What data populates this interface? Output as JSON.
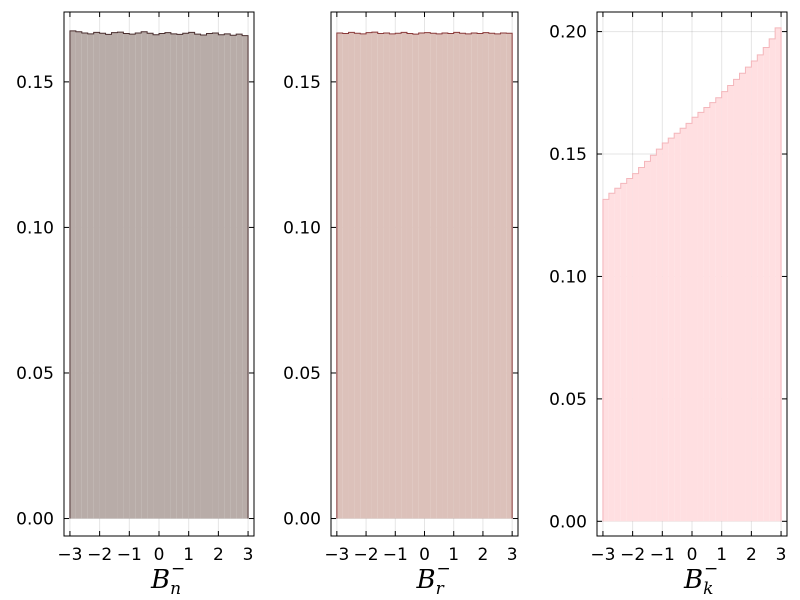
{
  "chart_data": [
    {
      "type": "bar",
      "xlabel_base": "B",
      "xlabel_sub": "n",
      "xlabel_sup": "−",
      "xlim": [
        -3.2,
        3.2
      ],
      "ylim": [
        -0.006,
        0.174
      ],
      "xticks": [
        -3,
        -2,
        -1,
        0,
        1,
        2,
        3
      ],
      "xtick_labels": [
        "−3",
        "−2",
        "−1",
        "0",
        "1",
        "2",
        "3"
      ],
      "yticks": [
        0,
        0.05,
        0.1,
        0.15
      ],
      "ytick_labels": [
        "0.00",
        "0.05",
        "0.10",
        "0.15"
      ],
      "grid": true,
      "fill_color": "#b8aca8",
      "stroke_color": "#4a2f2f",
      "bin_edges": [
        -3.0,
        -2.8,
        -2.6,
        -2.4,
        -2.2,
        -2.0,
        -1.8,
        -1.6,
        -1.4,
        -1.2,
        -1.0,
        -0.8,
        -0.6,
        -0.4,
        -0.2,
        0.0,
        0.2,
        0.4,
        0.6,
        0.8,
        1.0,
        1.2,
        1.4,
        1.6,
        1.8,
        2.0,
        2.2,
        2.4,
        2.6,
        2.8,
        3.0
      ],
      "values": [
        0.1675,
        0.1672,
        0.1668,
        0.1665,
        0.167,
        0.1667,
        0.1663,
        0.1669,
        0.1671,
        0.1666,
        0.1664,
        0.1668,
        0.1672,
        0.1667,
        0.1662,
        0.1666,
        0.1669,
        0.1665,
        0.1663,
        0.1667,
        0.167,
        0.1664,
        0.1661,
        0.1666,
        0.1668,
        0.1662,
        0.1665,
        0.166,
        0.1664,
        0.1659
      ]
    },
    {
      "type": "bar",
      "xlabel_base": "B",
      "xlabel_sub": "r",
      "xlabel_sup": "−",
      "xlim": [
        -3.2,
        3.2
      ],
      "ylim": [
        -0.006,
        0.174
      ],
      "xticks": [
        -3,
        -2,
        -1,
        0,
        1,
        2,
        3
      ],
      "xtick_labels": [
        "−3",
        "−2",
        "−1",
        "0",
        "1",
        "2",
        "3"
      ],
      "yticks": [
        0,
        0.05,
        0.1,
        0.15
      ],
      "ytick_labels": [
        "0.00",
        "0.05",
        "0.10",
        "0.15"
      ],
      "grid": true,
      "fill_color": "#dcc1ba",
      "stroke_color": "#8a3a3a",
      "bin_edges": [
        -3.0,
        -2.8,
        -2.6,
        -2.4,
        -2.2,
        -2.0,
        -1.8,
        -1.6,
        -1.4,
        -1.2,
        -1.0,
        -0.8,
        -0.6,
        -0.4,
        -0.2,
        0.0,
        0.2,
        0.4,
        0.6,
        0.8,
        1.0,
        1.2,
        1.4,
        1.6,
        1.8,
        2.0,
        2.2,
        2.4,
        2.6,
        2.8,
        3.0
      ],
      "values": [
        0.1668,
        0.1666,
        0.167,
        0.1667,
        0.1665,
        0.1669,
        0.1671,
        0.1666,
        0.1668,
        0.1665,
        0.1667,
        0.167,
        0.1666,
        0.1664,
        0.1668,
        0.1669,
        0.1667,
        0.1665,
        0.1668,
        0.1666,
        0.167,
        0.1667,
        0.1665,
        0.1668,
        0.1666,
        0.1669,
        0.1667,
        0.1665,
        0.1668,
        0.1667
      ]
    },
    {
      "type": "bar",
      "xlabel_base": "B",
      "xlabel_sub": "k",
      "xlabel_sup": "−",
      "xlim": [
        -3.2,
        3.2
      ],
      "ylim": [
        -0.006,
        0.208
      ],
      "xticks": [
        -3,
        -2,
        -1,
        0,
        1,
        2,
        3
      ],
      "xtick_labels": [
        "−3",
        "−2",
        "−1",
        "0",
        "1",
        "2",
        "3"
      ],
      "yticks": [
        0,
        0.05,
        0.1,
        0.15,
        0.2
      ],
      "ytick_labels": [
        "0.00",
        "0.05",
        "0.10",
        "0.15",
        "0.20"
      ],
      "grid": true,
      "fill_color": "#ffdfe1",
      "stroke_color": "#f4b6bb",
      "bin_edges": [
        -3.0,
        -2.8,
        -2.6,
        -2.4,
        -2.2,
        -2.0,
        -1.8,
        -1.6,
        -1.4,
        -1.2,
        -1.0,
        -0.8,
        -0.6,
        -0.4,
        -0.2,
        0.0,
        0.2,
        0.4,
        0.6,
        0.8,
        1.0,
        1.2,
        1.4,
        1.6,
        1.8,
        2.0,
        2.2,
        2.4,
        2.6,
        2.8,
        3.0
      ],
      "values": [
        0.1315,
        0.134,
        0.136,
        0.138,
        0.14,
        0.142,
        0.1445,
        0.147,
        0.1495,
        0.152,
        0.1545,
        0.1565,
        0.1585,
        0.1605,
        0.1625,
        0.165,
        0.167,
        0.169,
        0.171,
        0.173,
        0.1755,
        0.178,
        0.1805,
        0.183,
        0.1855,
        0.188,
        0.1905,
        0.1935,
        0.197,
        0.2015
      ]
    }
  ]
}
